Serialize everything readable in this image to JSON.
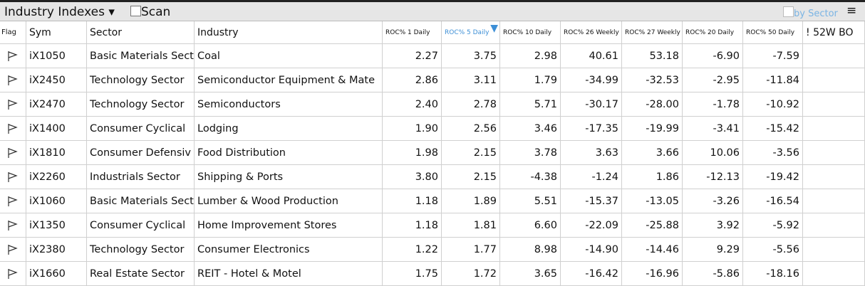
{
  "toolbar": {
    "title": "Industry Indexes",
    "scan": "Scan",
    "by_sector": "by Sector"
  },
  "table": {
    "columns": [
      "Flag",
      "Sym",
      "Sector",
      "Industry",
      "ROC% 1 Daily",
      "ROC% 5 Daily",
      "ROC% 10 Daily",
      "ROC% 26 Weekly",
      "ROC% 27 Weekly",
      "ROC% 20 Daily",
      "ROC% 50 Daily",
      "! 52W BO"
    ],
    "rows": [
      [
        "iX1050",
        "Basic Materials Sect",
        "Coal",
        "2.27",
        "3.75",
        "2.98",
        "40.61",
        "53.18",
        "-6.90",
        "-7.59"
      ],
      [
        "iX2450",
        "Technology Sector",
        "Semiconductor Equipment & Mate",
        "2.86",
        "3.11",
        "1.79",
        "-34.99",
        "-32.53",
        "-2.95",
        "-11.84"
      ],
      [
        "iX2470",
        "Technology Sector",
        "Semiconductors",
        "2.40",
        "2.78",
        "5.71",
        "-30.17",
        "-28.00",
        "-1.78",
        "-10.92"
      ],
      [
        "iX1400",
        "Consumer Cyclical",
        "Lodging",
        "1.90",
        "2.56",
        "3.46",
        "-17.35",
        "-19.99",
        "-3.41",
        "-15.42"
      ],
      [
        "iX1810",
        "Consumer Defensiv",
        "Food Distribution",
        "1.98",
        "2.15",
        "3.78",
        "3.63",
        "3.66",
        "10.06",
        "-3.56"
      ],
      [
        "iX2260",
        "Industrials Sector",
        "Shipping & Ports",
        "3.80",
        "2.15",
        "-4.38",
        "-1.24",
        "1.86",
        "-12.13",
        "-19.42"
      ],
      [
        "iX1060",
        "Basic Materials Sect",
        "Lumber & Wood Production",
        "1.18",
        "1.89",
        "5.51",
        "-15.37",
        "-13.05",
        "-3.26",
        "-16.54"
      ],
      [
        "iX1350",
        "Consumer Cyclical",
        "Home Improvement Stores",
        "1.18",
        "1.81",
        "6.60",
        "-22.09",
        "-25.88",
        "3.92",
        "-5.92"
      ],
      [
        "iX2380",
        "Technology Sector",
        "Consumer Electronics",
        "1.22",
        "1.77",
        "8.98",
        "-14.90",
        "-14.46",
        "9.29",
        "-5.56"
      ],
      [
        "iX1660",
        "Real Estate Sector",
        "REIT - Hotel & Motel",
        "1.75",
        "1.72",
        "3.65",
        "-16.42",
        "-16.96",
        "-5.86",
        "-18.16"
      ]
    ]
  }
}
